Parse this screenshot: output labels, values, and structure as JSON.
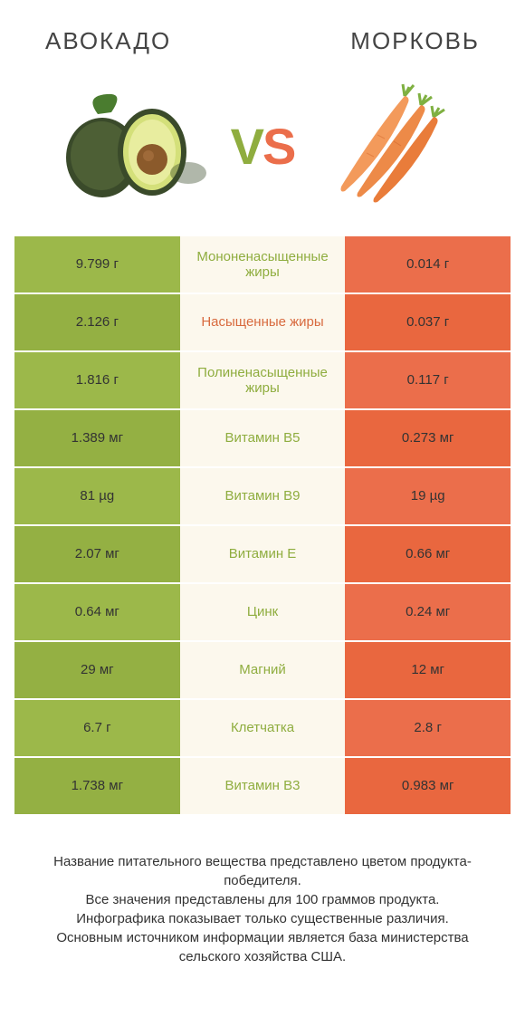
{
  "header": {
    "left_title": "АВОКАДО",
    "right_title": "МОРКОВЬ"
  },
  "vs": {
    "v": "V",
    "s": "S"
  },
  "colors": {
    "avocado_bg": "#9cb84a",
    "avocado_bg_alt": "#94b043",
    "carrot_bg": "#eb6e4b",
    "carrot_bg_alt": "#e9673f",
    "mid_bg": "#fcf8ed",
    "mid_text_green": "#8fad3f",
    "mid_text_orange": "#d86a3e"
  },
  "rows": [
    {
      "left": "9.799 г",
      "mid": "Мононенасыщенные жиры",
      "right": "0.014 г",
      "mid_color": "green"
    },
    {
      "left": "2.126 г",
      "mid": "Насыщенные жиры",
      "right": "0.037 г",
      "mid_color": "orange"
    },
    {
      "left": "1.816 г",
      "mid": "Полиненасыщенные жиры",
      "right": "0.117 г",
      "mid_color": "green"
    },
    {
      "left": "1.389 мг",
      "mid": "Витамин B5",
      "right": "0.273 мг",
      "mid_color": "green"
    },
    {
      "left": "81 µg",
      "mid": "Витамин B9",
      "right": "19 µg",
      "mid_color": "green"
    },
    {
      "left": "2.07 мг",
      "mid": "Витамин E",
      "right": "0.66 мг",
      "mid_color": "green"
    },
    {
      "left": "0.64 мг",
      "mid": "Цинк",
      "right": "0.24 мг",
      "mid_color": "green"
    },
    {
      "left": "29 мг",
      "mid": "Магний",
      "right": "12 мг",
      "mid_color": "green"
    },
    {
      "left": "6.7 г",
      "mid": "Клетчатка",
      "right": "2.8 г",
      "mid_color": "green"
    },
    {
      "left": "1.738 мг",
      "mid": "Витамин B3",
      "right": "0.983 мг",
      "mid_color": "green"
    }
  ],
  "footer": {
    "line1": "Название питательного вещества представлено цветом продукта-победителя.",
    "line2": "Все значения представлены для 100 граммов продукта.",
    "line3": "Инфографика показывает только существенные различия.",
    "line4": "Основным источником информации является база министерства сельского хозяйства США."
  }
}
